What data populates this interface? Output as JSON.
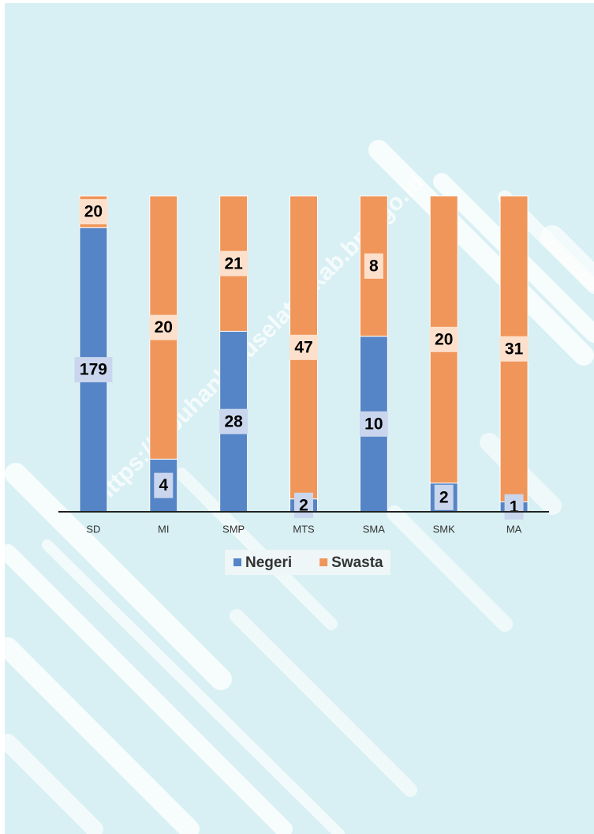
{
  "chart_data": {
    "type": "bar",
    "stacking": "percent",
    "categories": [
      "SD",
      "MI",
      "SMP",
      "MTS",
      "SMA",
      "SMK",
      "MA"
    ],
    "series": [
      {
        "name": "Negeri",
        "color": "#5585c6",
        "values": [
          179,
          4,
          28,
          2,
          10,
          2,
          1
        ]
      },
      {
        "name": "Swasta",
        "color": "#f0965a",
        "values": [
          20,
          20,
          21,
          47,
          8,
          20,
          31
        ]
      }
    ],
    "legend": "bottom",
    "watermark": "https://labuhanbatuselatankab.bps.go.id"
  }
}
